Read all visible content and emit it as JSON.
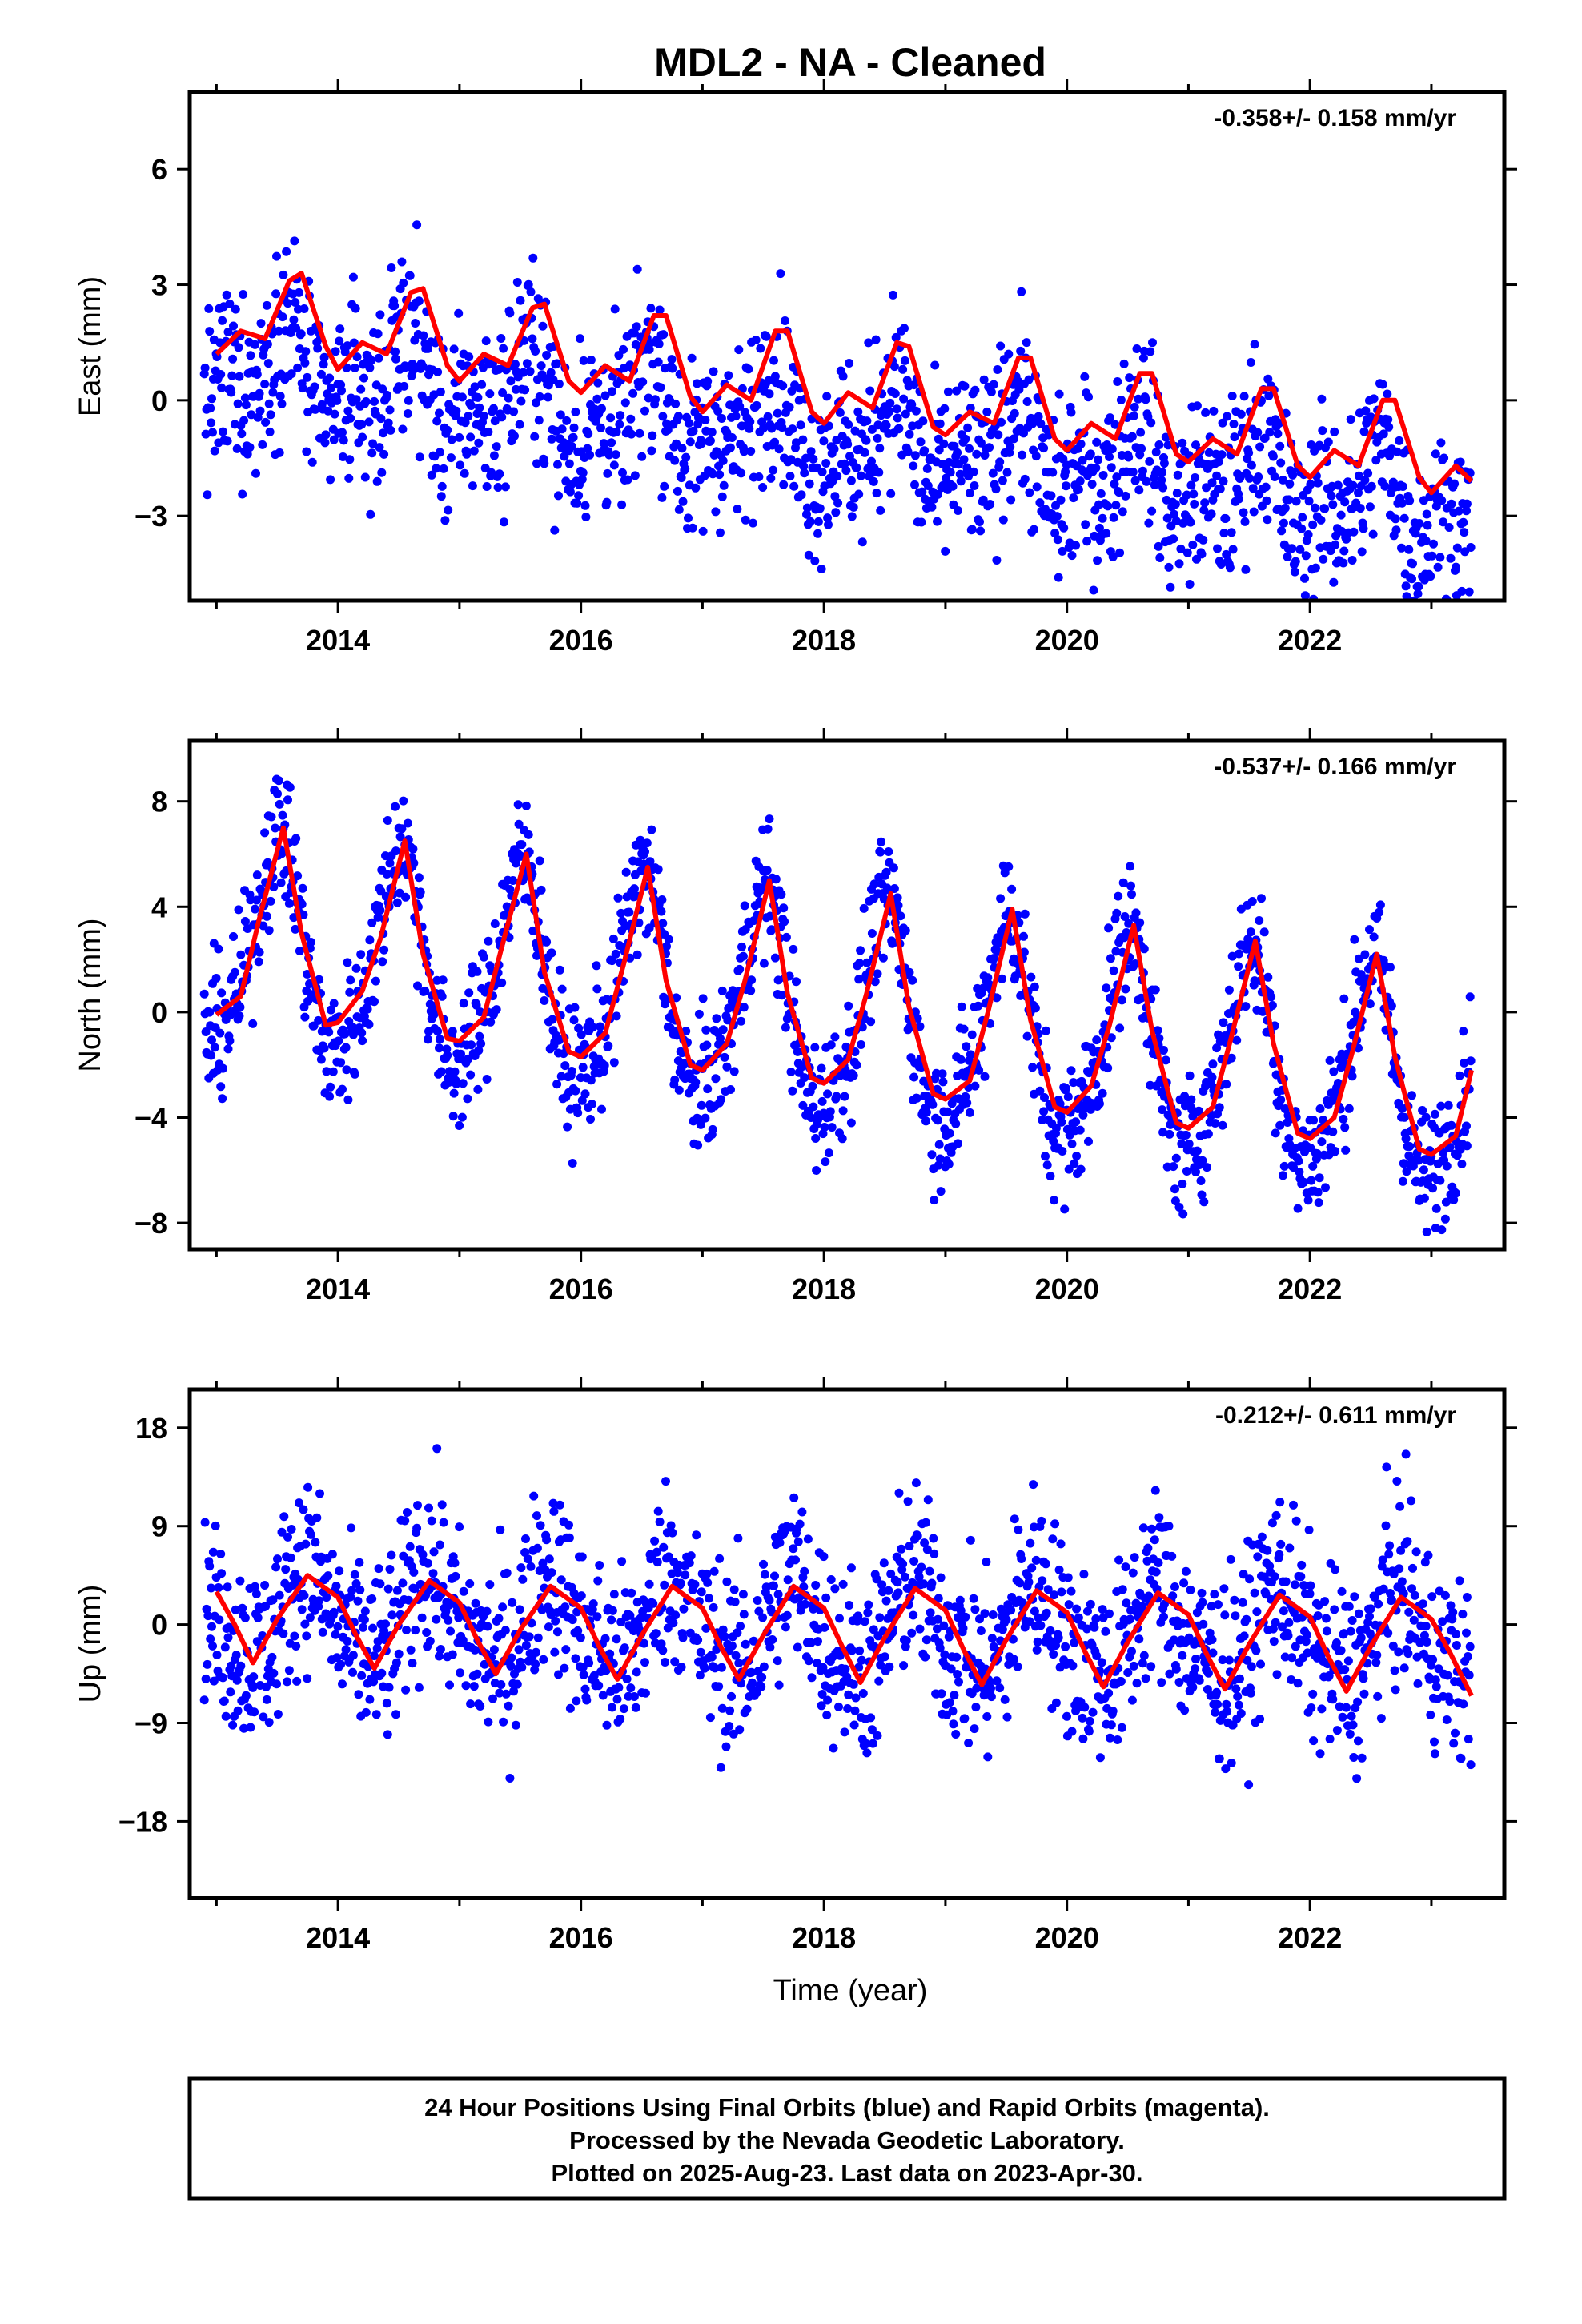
{
  "title": "MDL2  - NA - Cleaned",
  "xlabel": "Time (year)",
  "colors": {
    "points": "#0000ff",
    "fit": "#ff0000",
    "frame": "#000000"
  },
  "footer": {
    "line1": "24 Hour Positions Using Final Orbits (blue) and Rapid Orbits (magenta).",
    "line2": "Processed by the Nevada Geodetic Laboratory.",
    "line3": "Plotted on 2025-Aug-23. Last data on 2023-Apr-30."
  },
  "chart_data": [
    {
      "type": "scatter",
      "component": "East",
      "ylabel": "East (mm)",
      "rate_label": "-0.358+/- 0.158 mm/yr",
      "xlim": [
        2012.78,
        2023.6
      ],
      "ylim": [
        -5.2,
        8.0
      ],
      "x_ticks": [
        2014,
        2016,
        2018,
        2020,
        2022
      ],
      "y_ticks": [
        -3,
        0,
        3,
        6
      ],
      "trend": {
        "rate_mm_per_yr": -0.358,
        "offset_mm": 0.9,
        "annual_amp": 0.9,
        "annual_phase": 0.55,
        "semiannual_amp": 0.6,
        "semiannual_phase": 0.1
      },
      "scatter_sigma_mm": 1.15,
      "fit_x": [
        2013.0,
        2013.2,
        2013.4,
        2013.6,
        2013.7,
        2013.9,
        2014.0,
        2014.2,
        2014.4,
        2014.6,
        2014.7,
        2014.9,
        2015.0,
        2015.2,
        2015.4,
        2015.6,
        2015.7,
        2015.9,
        2016.0,
        2016.2,
        2016.4,
        2016.6,
        2016.7,
        2016.9,
        2017.0,
        2017.2,
        2017.4,
        2017.6,
        2017.7,
        2017.9,
        2018.0,
        2018.2,
        2018.4,
        2018.6,
        2018.7,
        2018.9,
        2019.0,
        2019.2,
        2019.4,
        2019.6,
        2019.7,
        2019.9,
        2020.0,
        2020.2,
        2020.4,
        2020.6,
        2020.7,
        2020.9,
        2021.0,
        2021.2,
        2021.4,
        2021.6,
        2021.7,
        2021.9,
        2022.0,
        2022.2,
        2022.4,
        2022.6,
        2022.7,
        2022.9,
        2023.0,
        2023.2,
        2023.33
      ],
      "fit_y": [
        1.2,
        1.8,
        1.6,
        3.1,
        3.3,
        1.4,
        0.8,
        1.5,
        1.2,
        2.8,
        2.9,
        0.9,
        0.5,
        1.2,
        0.9,
        2.4,
        2.5,
        0.5,
        0.2,
        0.9,
        0.5,
        2.2,
        2.2,
        0.1,
        -0.3,
        0.4,
        0.0,
        1.8,
        1.8,
        -0.3,
        -0.6,
        0.2,
        -0.2,
        1.5,
        1.4,
        -0.7,
        -0.9,
        -0.3,
        -0.6,
        1.1,
        1.1,
        -1.0,
        -1.3,
        -0.6,
        -1.0,
        0.7,
        0.7,
        -1.4,
        -1.6,
        -1.0,
        -1.4,
        0.3,
        0.3,
        -1.7,
        -2.0,
        -1.3,
        -1.7,
        0.0,
        0.0,
        -2.0,
        -2.4,
        -1.7,
        -2.1
      ]
    },
    {
      "type": "scatter",
      "component": "North",
      "ylabel": "North (mm)",
      "rate_label": "-0.537+/- 0.166 mm/yr",
      "xlim": [
        2012.78,
        2023.6
      ],
      "ylim": [
        -9.0,
        10.3
      ],
      "x_ticks": [
        2014,
        2016,
        2018,
        2020,
        2022
      ],
      "y_ticks": [
        -8,
        -4,
        0,
        4,
        8
      ],
      "trend": {
        "rate_mm_per_yr": -0.537,
        "offset_mm": 2.6,
        "annual_amp": 3.9,
        "annual_phase": 0.5,
        "semiannual_amp": 0.7,
        "semiannual_phase": 0.05
      },
      "scatter_sigma_mm": 1.25,
      "fit_x": [
        2013.0,
        2013.2,
        2013.35,
        2013.55,
        2013.7,
        2013.9,
        2014.0,
        2014.2,
        2014.35,
        2014.55,
        2014.7,
        2014.9,
        2015.0,
        2015.2,
        2015.35,
        2015.55,
        2015.7,
        2015.9,
        2016.0,
        2016.2,
        2016.35,
        2016.55,
        2016.7,
        2016.9,
        2017.0,
        2017.2,
        2017.35,
        2017.55,
        2017.7,
        2017.9,
        2018.0,
        2018.2,
        2018.35,
        2018.55,
        2018.7,
        2018.9,
        2019.0,
        2019.2,
        2019.35,
        2019.55,
        2019.7,
        2019.9,
        2020.0,
        2020.2,
        2020.35,
        2020.55,
        2020.7,
        2020.9,
        2021.0,
        2021.2,
        2021.35,
        2021.55,
        2021.7,
        2021.9,
        2022.0,
        2022.2,
        2022.35,
        2022.55,
        2022.7,
        2022.9,
        2023.0,
        2023.2,
        2023.33
      ],
      "fit_y": [
        -0.1,
        0.6,
        3.5,
        7.0,
        3.0,
        -0.5,
        -0.4,
        0.8,
        2.8,
        6.5,
        2.2,
        -1.0,
        -1.1,
        -0.2,
        2.5,
        6.0,
        1.5,
        -1.5,
        -1.7,
        -0.8,
        1.8,
        5.5,
        1.2,
        -2.0,
        -2.2,
        -1.2,
        1.2,
        5.0,
        0.7,
        -2.5,
        -2.7,
        -1.8,
        0.7,
        4.5,
        0.2,
        -3.1,
        -3.3,
        -2.6,
        0.0,
        3.9,
        -0.3,
        -3.6,
        -3.8,
        -2.8,
        -0.5,
        3.3,
        -0.7,
        -4.2,
        -4.4,
        -3.6,
        -1.0,
        2.7,
        -1.2,
        -4.6,
        -4.8,
        -4.0,
        -1.5,
        2.2,
        -1.7,
        -5.2,
        -5.4,
        -4.7,
        -2.2
      ]
    },
    {
      "type": "scatter",
      "component": "Up",
      "ylabel": "Up (mm)",
      "rate_label": "-0.212+/- 0.611 mm/yr",
      "xlim": [
        2012.78,
        2023.6
      ],
      "ylim": [
        -25.0,
        21.5
      ],
      "x_ticks": [
        2014,
        2016,
        2018,
        2020,
        2022
      ],
      "y_ticks": [
        -18,
        -9,
        0,
        9,
        18
      ],
      "trend": {
        "rate_mm_per_yr": -0.212,
        "offset_mm": 0.8,
        "annual_amp": 4.0,
        "annual_phase": 0.75,
        "semiannual_amp": 1.0,
        "semiannual_phase": 0.2
      },
      "scatter_sigma_mm": 4.2,
      "fit_x": [
        2013.0,
        2013.15,
        2013.3,
        2013.5,
        2013.75,
        2014.0,
        2014.15,
        2014.3,
        2014.5,
        2014.75,
        2015.0,
        2015.15,
        2015.3,
        2015.5,
        2015.75,
        2016.0,
        2016.15,
        2016.3,
        2016.5,
        2016.75,
        2017.0,
        2017.15,
        2017.3,
        2017.5,
        2017.75,
        2018.0,
        2018.15,
        2018.3,
        2018.5,
        2018.75,
        2019.0,
        2019.15,
        2019.3,
        2019.5,
        2019.75,
        2020.0,
        2020.15,
        2020.3,
        2020.5,
        2020.75,
        2021.0,
        2021.15,
        2021.3,
        2021.5,
        2021.75,
        2022.0,
        2022.15,
        2022.3,
        2022.5,
        2022.75,
        2023.0,
        2023.15,
        2023.33
      ],
      "fit_y": [
        3.0,
        0.0,
        -3.5,
        0.5,
        4.5,
        2.5,
        -1.0,
        -4.0,
        0.0,
        4.0,
        2.0,
        -1.5,
        -4.5,
        -0.5,
        3.5,
        1.5,
        -2.0,
        -5.0,
        -1.0,
        3.5,
        1.5,
        -2.0,
        -5.0,
        -1.0,
        3.5,
        1.5,
        -2.0,
        -5.3,
        -1.2,
        3.3,
        1.3,
        -2.3,
        -5.5,
        -1.4,
        3.1,
        1.1,
        -2.5,
        -5.7,
        -1.6,
        2.9,
        0.9,
        -2.7,
        -5.9,
        -1.8,
        2.7,
        0.7,
        -2.9,
        -6.1,
        -2.0,
        2.5,
        0.5,
        -2.5,
        -6.5
      ]
    }
  ]
}
